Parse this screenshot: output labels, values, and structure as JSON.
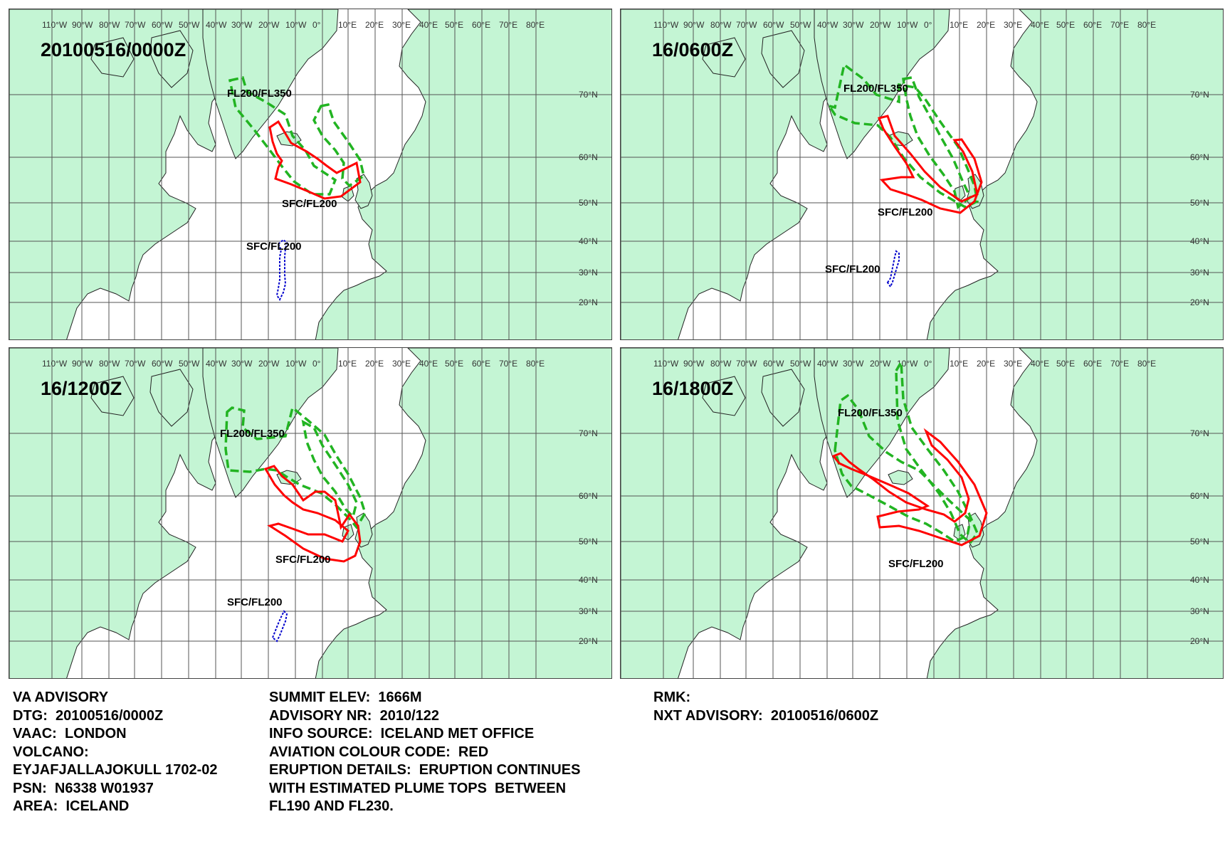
{
  "panels": [
    {
      "title": "20100516/0000Z",
      "labels": {
        "upper": "FL200/FL350",
        "lower": "SFC/FL200",
        "secondary": "SFC/FL200"
      },
      "red": [
        [
          378,
          178
        ],
        [
          390,
          170
        ],
        [
          408,
          200
        ],
        [
          430,
          212
        ],
        [
          445,
          222
        ],
        [
          458,
          232
        ],
        [
          472,
          242
        ],
        [
          500,
          228
        ],
        [
          505,
          255
        ],
        [
          478,
          275
        ],
        [
          455,
          278
        ],
        [
          432,
          268
        ],
        [
          408,
          258
        ],
        [
          386,
          250
        ],
        [
          390,
          234
        ],
        [
          395,
          225
        ],
        [
          388,
          215
        ],
        [
          382,
          198
        ]
      ],
      "greens": [
        [
          [
            322,
            112
          ],
          [
            340,
            108
          ],
          [
            346,
            128
          ],
          [
            372,
            142
          ],
          [
            400,
            160
          ],
          [
            410,
            190
          ],
          [
            428,
            210
          ],
          [
            440,
            232
          ],
          [
            470,
            252
          ],
          [
            462,
            272
          ],
          [
            438,
            272
          ],
          [
            412,
            254
          ],
          [
            396,
            234
          ],
          [
            378,
            210
          ],
          [
            355,
            180
          ],
          [
            330,
            150
          ]
        ],
        [
          [
            450,
            148
          ],
          [
            460,
            146
          ],
          [
            468,
            170
          ],
          [
            488,
            198
          ],
          [
            505,
            224
          ],
          [
            510,
            246
          ],
          [
            490,
            260
          ],
          [
            480,
            250
          ],
          [
            482,
            228
          ],
          [
            470,
            210
          ],
          [
            452,
            190
          ],
          [
            440,
            168
          ]
        ]
      ],
      "blue": [
        [
          390,
          342
        ],
        [
          394,
          350
        ],
        [
          392,
          360
        ],
        [
          392,
          372
        ],
        [
          392,
          382
        ],
        [
          392,
          392
        ],
        [
          390,
          404
        ],
        [
          388,
          414
        ],
        [
          392,
          420
        ],
        [
          397,
          410
        ],
        [
          400,
          398
        ],
        [
          399,
          385
        ],
        [
          399,
          372
        ],
        [
          399,
          360
        ],
        [
          400,
          348
        ],
        [
          402,
          340
        ],
        [
          397,
          336
        ]
      ]
    },
    {
      "title": "16/0600Z",
      "labels": {
        "upper": "FL200/FL350",
        "lower": "SFC/FL200",
        "secondary": "SFC/FL200"
      },
      "red": [
        [
          1234,
          165
        ],
        [
          1246,
          162
        ],
        [
          1256,
          190
        ],
        [
          1278,
          215
        ],
        [
          1298,
          240
        ],
        [
          1320,
          262
        ],
        [
          1350,
          282
        ],
        [
          1372,
          272
        ],
        [
          1365,
          240
        ],
        [
          1352,
          212
        ],
        [
          1340,
          196
        ],
        [
          1350,
          195
        ],
        [
          1368,
          222
        ],
        [
          1378,
          255
        ],
        [
          1368,
          282
        ],
        [
          1348,
          298
        ],
        [
          1320,
          292
        ],
        [
          1294,
          280
        ],
        [
          1272,
          272
        ],
        [
          1250,
          265
        ],
        [
          1238,
          252
        ],
        [
          1265,
          248
        ],
        [
          1282,
          248
        ],
        [
          1272,
          228
        ],
        [
          1256,
          205
        ],
        [
          1240,
          180
        ]
      ],
      "greens": [
        [
          [
            1164,
            148
          ],
          [
            1172,
            150
          ],
          [
            1185,
            90
          ],
          [
            1212,
            110
          ],
          [
            1230,
            132
          ],
          [
            1262,
            142
          ],
          [
            1262,
            118
          ],
          [
            1285,
            122
          ],
          [
            1300,
            140
          ],
          [
            1320,
            170
          ],
          [
            1345,
            205
          ],
          [
            1360,
            240
          ],
          [
            1368,
            260
          ],
          [
            1372,
            282
          ],
          [
            1355,
            290
          ],
          [
            1320,
            270
          ],
          [
            1292,
            248
          ],
          [
            1268,
            220
          ],
          [
            1250,
            192
          ],
          [
            1232,
            175
          ],
          [
            1200,
            172
          ],
          [
            1172,
            160
          ]
        ],
        [
          [
            1268,
            110
          ],
          [
            1280,
            108
          ],
          [
            1290,
            135
          ],
          [
            1305,
            162
          ],
          [
            1320,
            190
          ],
          [
            1338,
            222
          ],
          [
            1352,
            255
          ],
          [
            1362,
            276
          ],
          [
            1345,
            290
          ],
          [
            1340,
            268
          ],
          [
            1325,
            245
          ],
          [
            1305,
            218
          ],
          [
            1288,
            190
          ],
          [
            1278,
            162
          ],
          [
            1272,
            136
          ]
        ]
      ],
      "blue": [
        [
          1246,
          396
        ],
        [
          1250,
          390
        ],
        [
          1252,
          380
        ],
        [
          1254,
          370
        ],
        [
          1256,
          360
        ],
        [
          1258,
          352
        ],
        [
          1262,
          355
        ],
        [
          1262,
          365
        ],
        [
          1259,
          375
        ],
        [
          1256,
          385
        ],
        [
          1253,
          395
        ],
        [
          1250,
          402
        ]
      ]
    },
    {
      "title": "16/1200Z",
      "labels": {
        "upper": "FL200/FL350",
        "lower": "SFC/FL200",
        "secondary": "SFC/FL200"
      },
      "red": [
        [
          372,
          658
        ],
        [
          384,
          654
        ],
        [
          395,
          668
        ],
        [
          410,
          680
        ],
        [
          425,
          702
        ],
        [
          442,
          690
        ],
        [
          455,
          690
        ],
        [
          470,
          702
        ],
        [
          478,
          740
        ],
        [
          490,
          722
        ],
        [
          502,
          738
        ],
        [
          505,
          760
        ],
        [
          498,
          780
        ],
        [
          482,
          788
        ],
        [
          455,
          784
        ],
        [
          425,
          770
        ],
        [
          400,
          752
        ],
        [
          378,
          738
        ],
        [
          390,
          735
        ],
        [
          410,
          742
        ],
        [
          432,
          750
        ],
        [
          455,
          750
        ],
        [
          480,
          760
        ],
        [
          488,
          745
        ],
        [
          470,
          730
        ],
        [
          445,
          720
        ],
        [
          425,
          715
        ],
        [
          410,
          705
        ],
        [
          398,
          695
        ],
        [
          385,
          680
        ]
      ],
      "greens": [
        [
          [
            318,
            578
          ],
          [
            325,
            572
          ],
          [
            342,
            576
          ],
          [
            340,
            600
          ],
          [
            360,
            616
          ],
          [
            400,
            612
          ],
          [
            410,
            572
          ],
          [
            432,
            590
          ],
          [
            455,
            610
          ],
          [
            472,
            640
          ],
          [
            488,
            665
          ],
          [
            505,
            698
          ],
          [
            512,
            720
          ],
          [
            500,
            740
          ],
          [
            490,
            728
          ],
          [
            470,
            708
          ],
          [
            450,
            692
          ],
          [
            420,
            680
          ],
          [
            400,
            668
          ],
          [
            388,
            660
          ],
          [
            372,
            658
          ],
          [
            350,
            662
          ],
          [
            320,
            660
          ],
          [
            316,
            630
          ]
        ],
        [
          [
            425,
            592
          ],
          [
            440,
            600
          ],
          [
            452,
            625
          ],
          [
            470,
            652
          ],
          [
            488,
            680
          ],
          [
            500,
            705
          ],
          [
            495,
            725
          ],
          [
            485,
            715
          ],
          [
            470,
            690
          ],
          [
            452,
            668
          ],
          [
            440,
            645
          ],
          [
            430,
            620
          ]
        ]
      ],
      "blue": [
        [
          382,
          895
        ],
        [
          386,
          885
        ],
        [
          390,
          875
        ],
        [
          394,
          866
        ],
        [
          398,
          858
        ],
        [
          402,
          862
        ],
        [
          400,
          872
        ],
        [
          396,
          882
        ],
        [
          392,
          892
        ],
        [
          388,
          900
        ]
      ]
    },
    {
      "title": "16/1800Z",
      "labels": {
        "upper": "FL200/FL350",
        "lower": "SFC/FL200",
        "secondary": ""
      },
      "red": [
        [
          1170,
          640
        ],
        [
          1180,
          636
        ],
        [
          1192,
          648
        ],
        [
          1205,
          658
        ],
        [
          1225,
          672
        ],
        [
          1248,
          690
        ],
        [
          1272,
          705
        ],
        [
          1300,
          715
        ],
        [
          1325,
          722
        ],
        [
          1340,
          732
        ],
        [
          1355,
          720
        ],
        [
          1360,
          700
        ],
        [
          1350,
          670
        ],
        [
          1330,
          645
        ],
        [
          1308,
          625
        ],
        [
          1300,
          605
        ],
        [
          1320,
          620
        ],
        [
          1345,
          648
        ],
        [
          1368,
          680
        ],
        [
          1385,
          720
        ],
        [
          1375,
          752
        ],
        [
          1350,
          765
        ],
        [
          1320,
          755
        ],
        [
          1290,
          745
        ],
        [
          1262,
          738
        ],
        [
          1235,
          740
        ],
        [
          1232,
          725
        ],
        [
          1260,
          718
        ],
        [
          1290,
          715
        ],
        [
          1302,
          710
        ],
        [
          1275,
          692
        ],
        [
          1248,
          680
        ],
        [
          1220,
          668
        ],
        [
          1195,
          658
        ],
        [
          1178,
          650
        ]
      ],
      "greens": [
        [
          [
            1172,
            632
          ],
          [
            1180,
            562
          ],
          [
            1190,
            555
          ],
          [
            1205,
            575
          ],
          [
            1220,
            612
          ],
          [
            1245,
            635
          ],
          [
            1265,
            648
          ],
          [
            1290,
            660
          ],
          [
            1330,
            700
          ],
          [
            1362,
            730
          ],
          [
            1358,
            752
          ],
          [
            1340,
            760
          ],
          [
            1322,
            748
          ],
          [
            1300,
            735
          ],
          [
            1275,
            725
          ],
          [
            1248,
            710
          ],
          [
            1220,
            695
          ],
          [
            1195,
            682
          ],
          [
            1182,
            665
          ]
        ],
        [
          [
            1258,
            520
          ],
          [
            1265,
            508
          ],
          [
            1268,
            560
          ],
          [
            1280,
            600
          ],
          [
            1302,
            630
          ],
          [
            1325,
            660
          ],
          [
            1345,
            690
          ],
          [
            1360,
            720
          ],
          [
            1372,
            748
          ],
          [
            1362,
            762
          ],
          [
            1348,
            750
          ],
          [
            1335,
            720
          ],
          [
            1318,
            692
          ],
          [
            1295,
            662
          ],
          [
            1272,
            630
          ],
          [
            1260,
            590
          ]
        ]
      ],
      "blue": []
    }
  ],
  "advisory": {
    "left": [
      "VA ADVISORY",
      "DTG:  20100516/0000Z",
      "VAAC:  LONDON",
      "VOLCANO:",
      "EYJAFJALLAJOKULL 1702-02",
      "PSN:  N6338 W01937",
      "AREA:  ICELAND"
    ],
    "mid": [
      "SUMMIT ELEV:  1666M",
      "ADVISORY NR:  2010/122",
      "INFO SOURCE:  ICELAND MET OFFICE",
      "AVIATION COLOUR CODE:  RED",
      "ERUPTION DETAILS:  ERUPTION CONTINUES",
      "WITH ESTIMATED PLUME TOPS  BETWEEN",
      "FL190 AND FL230."
    ],
    "right": [
      "RMK:",
      "NXT ADVISORY:  20100516/0600Z"
    ]
  },
  "map": {
    "land_color": "#c4f5d4",
    "land_outline": "#222222",
    "grid_color": "#555555",
    "ash_red": "#ff0000",
    "ash_green": "#22b422",
    "ash_blue": "#0000cc",
    "lon_ticks": [
      "110°W",
      "90°W",
      "80°W",
      "70°W",
      "60°W",
      "50°W",
      "40°W",
      "30°W",
      "20°W",
      "10°W",
      "0°",
      "10°E",
      "20°E",
      "30°E",
      "40°E",
      "50°E",
      "60°E",
      "70°E",
      "80°E"
    ],
    "lat_ticks": [
      "70°N",
      "60°N",
      "50°N",
      "40°N",
      "30°N",
      "20°N"
    ]
  }
}
